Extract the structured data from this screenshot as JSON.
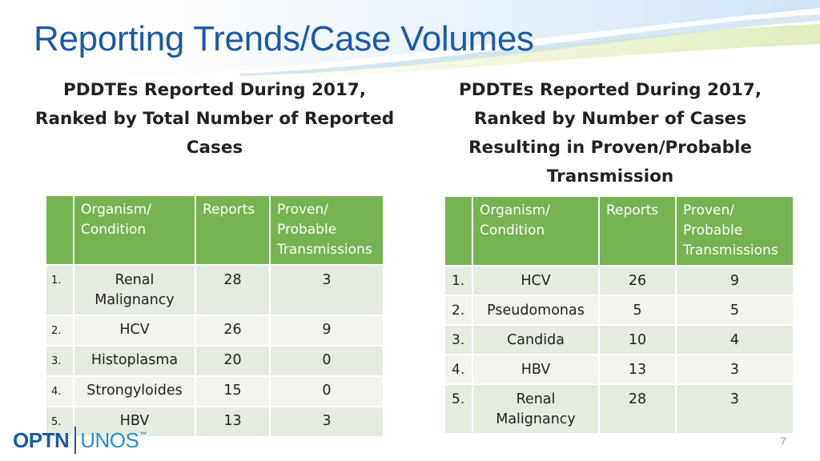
{
  "slide": {
    "title": "Reporting Trends/Case Volumes",
    "page_number": "7"
  },
  "left": {
    "subtitle_lines": [
      "PDDTEs Reported During 2017,",
      "Ranked by Total Number of Reported",
      "Cases"
    ],
    "headers": {
      "num": "",
      "organism": [
        "Organism/",
        "Condition"
      ],
      "reports": "Reports",
      "proven": [
        "Proven/",
        "Probable",
        "Transmissions"
      ]
    },
    "rows": [
      {
        "num": "1.",
        "organism": "Renal Malignancy",
        "reports": "28",
        "proven": "3"
      },
      {
        "num": "2.",
        "organism": "HCV",
        "reports": "26",
        "proven": "9"
      },
      {
        "num": "3.",
        "organism": "Histoplasma",
        "reports": "20",
        "proven": "0"
      },
      {
        "num": "4.",
        "organism": "Strongyloides",
        "reports": "15",
        "proven": "0"
      },
      {
        "num": "5.",
        "organism": "HBV",
        "reports": "13",
        "proven": "3"
      }
    ]
  },
  "right": {
    "subtitle_lines": [
      "PDDTEs Reported During 2017,",
      "Ranked by Number of Cases",
      "Resulting in Proven/Probable",
      "Transmission"
    ],
    "headers": {
      "num": "",
      "organism": [
        "Organism/",
        "Condition"
      ],
      "reports": "Reports",
      "proven": [
        "Proven/",
        "Probable",
        "Transmissions"
      ]
    },
    "rows": [
      {
        "num": "1.",
        "organism": "HCV",
        "reports": "26",
        "proven": "9"
      },
      {
        "num": "2.",
        "organism": "Pseudomonas",
        "reports": "5",
        "proven": "5"
      },
      {
        "num": "3.",
        "organism": "Candida",
        "reports": "10",
        "proven": "4"
      },
      {
        "num": "4.",
        "organism": "HBV",
        "reports": "13",
        "proven": "3"
      },
      {
        "num": "5.",
        "organism": "Renal Malignancy",
        "reports": "28",
        "proven": "3"
      }
    ]
  },
  "logo": {
    "left_text": "OPTN",
    "right_text": "UNOS",
    "mark": "™"
  },
  "colors": {
    "title": "#1b5aa6",
    "header_green": "#76b451",
    "row_odd": "#e4ecdf",
    "row_even": "#f1f5ee"
  }
}
